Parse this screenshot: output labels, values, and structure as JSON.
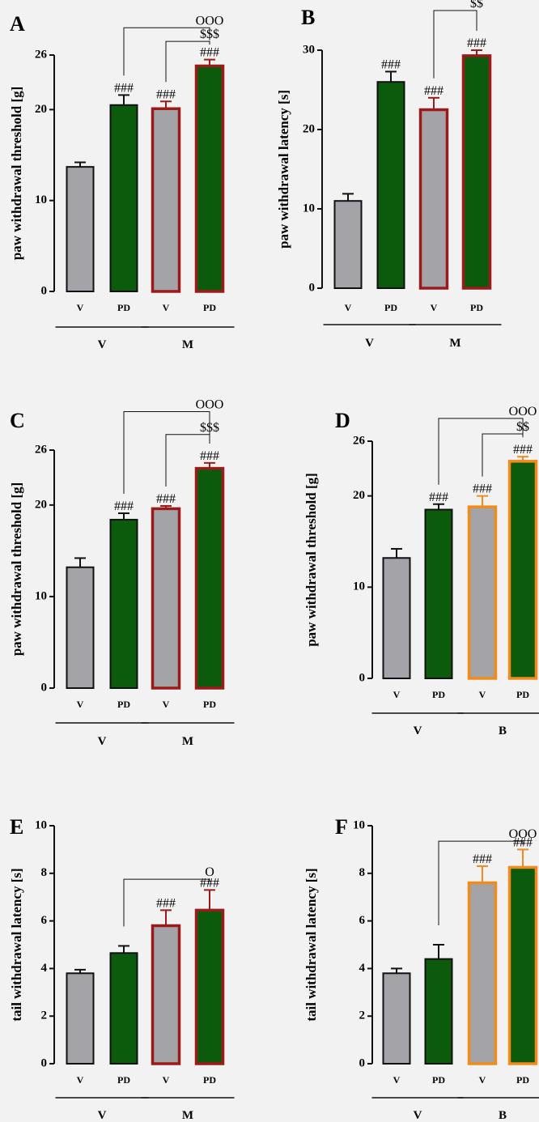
{
  "figure": {
    "background": "#f2f2f2"
  },
  "colors": {
    "gray": "#a3a3a8",
    "green": "#0c5a0c",
    "black": "#111111",
    "darkred": "#9b1a1a",
    "orange": "#f08c1e"
  },
  "chart_data": [
    {
      "type": "bar",
      "panel": "A",
      "ylabel": "paw withdrawal threshold  [g]",
      "ylim": [
        0,
        26
      ],
      "yticks": [
        0,
        10,
        20,
        26
      ],
      "categories": [
        "V",
        "PD",
        "V",
        "PD"
      ],
      "groups": [
        {
          "label": "V",
          "span": [
            0,
            1
          ]
        },
        {
          "label": "M",
          "span": [
            2,
            3
          ]
        }
      ],
      "values": [
        13.7,
        20.5,
        20.1,
        24.8
      ],
      "errors": [
        0.5,
        1.1,
        0.8,
        0.7
      ],
      "fills": [
        "gray",
        "green",
        "gray",
        "green"
      ],
      "outlines": [
        "black",
        "black",
        "darkred",
        "darkred"
      ],
      "bar_labels": [
        "",
        "###",
        "###",
        "###"
      ],
      "brackets": [
        {
          "from": 1,
          "to": 3,
          "y": 29.0,
          "label": "OOO"
        },
        {
          "from": 2,
          "to": 3,
          "y": 27.5,
          "label": "$$$"
        }
      ]
    },
    {
      "type": "bar",
      "panel": "B",
      "ylabel": "paw withdrawal latency  [s]",
      "ylim": [
        0,
        30
      ],
      "yticks": [
        0,
        10,
        20,
        30
      ],
      "categories": [
        "V",
        "PD",
        "V",
        "PD"
      ],
      "groups": [
        {
          "label": "V",
          "span": [
            0,
            1
          ]
        },
        {
          "label": "M",
          "span": [
            2,
            3
          ]
        }
      ],
      "values": [
        11.0,
        26.0,
        22.5,
        29.3
      ],
      "errors": [
        0.9,
        1.3,
        1.5,
        0.7
      ],
      "fills": [
        "gray",
        "green",
        "gray",
        "green"
      ],
      "outlines": [
        "black",
        "black",
        "darkred",
        "darkred"
      ],
      "bar_labels": [
        "",
        "###",
        "###",
        "###"
      ],
      "brackets": [
        {
          "from": 2,
          "to": 3,
          "y": 35.0,
          "label": "$$"
        }
      ]
    },
    {
      "type": "bar",
      "panel": "C",
      "ylabel": "paw withdrawal threshold  [g]",
      "ylim": [
        0,
        26
      ],
      "yticks": [
        0,
        10,
        20,
        26
      ],
      "categories": [
        "V",
        "PD",
        "V",
        "PD"
      ],
      "groups": [
        {
          "label": "V",
          "span": [
            0,
            1
          ]
        },
        {
          "label": "M",
          "span": [
            2,
            3
          ]
        }
      ],
      "values": [
        13.2,
        18.4,
        19.6,
        24.0
      ],
      "errors": [
        1.0,
        0.7,
        0.3,
        0.6
      ],
      "fills": [
        "gray",
        "green",
        "gray",
        "green"
      ],
      "outlines": [
        "black",
        "black",
        "darkred",
        "darkred"
      ],
      "bar_labels": [
        "",
        "###",
        "###",
        "###"
      ],
      "brackets": [
        {
          "from": 1,
          "to": 3,
          "y": 30.2,
          "label": "OOO"
        },
        {
          "from": 2,
          "to": 3,
          "y": 27.7,
          "label": "$$$"
        }
      ]
    },
    {
      "type": "bar",
      "panel": "D",
      "ylabel": "paw withdrawal threshold  [g]",
      "ylim": [
        0,
        26
      ],
      "yticks": [
        0,
        10,
        20,
        26
      ],
      "categories": [
        "V",
        "PD",
        "V",
        "PD"
      ],
      "groups": [
        {
          "label": "V",
          "span": [
            0,
            1
          ]
        },
        {
          "label": "B",
          "span": [
            2,
            3
          ]
        }
      ],
      "values": [
        13.2,
        18.5,
        18.8,
        23.8
      ],
      "errors": [
        1.0,
        0.6,
        1.2,
        0.5
      ],
      "fills": [
        "gray",
        "green",
        "gray",
        "green"
      ],
      "outlines": [
        "black",
        "black",
        "orange",
        "orange"
      ],
      "bar_labels": [
        "",
        "###",
        "###",
        "###"
      ],
      "brackets": [
        {
          "from": 1,
          "to": 3,
          "y": 28.5,
          "label": "OOO"
        },
        {
          "from": 2,
          "to": 3,
          "y": 26.8,
          "label": "$$"
        }
      ]
    },
    {
      "type": "bar",
      "panel": "E",
      "ylabel": "tail withdrawal latency  [s]",
      "ylim": [
        0,
        10
      ],
      "yticks": [
        0,
        2,
        4,
        6,
        8,
        10
      ],
      "categories": [
        "V",
        "PD",
        "V",
        "PD"
      ],
      "groups": [
        {
          "label": "V",
          "span": [
            0,
            1
          ]
        },
        {
          "label": "M",
          "span": [
            2,
            3
          ]
        }
      ],
      "values": [
        3.8,
        4.65,
        5.8,
        6.45
      ],
      "errors": [
        0.15,
        0.3,
        0.65,
        0.85
      ],
      "fills": [
        "gray",
        "green",
        "gray",
        "green"
      ],
      "outlines": [
        "black",
        "black",
        "darkred",
        "darkred"
      ],
      "bar_labels": [
        "",
        "",
        "###",
        "###"
      ],
      "brackets": [
        {
          "from": 1,
          "to": 3,
          "y": 7.75,
          "label": "O"
        }
      ]
    },
    {
      "type": "bar",
      "panel": "F",
      "ylabel": "tail withdrawal latency [s]",
      "ylim": [
        0,
        10
      ],
      "yticks": [
        0,
        2,
        4,
        6,
        8,
        10
      ],
      "categories": [
        "V",
        "PD",
        "V",
        "PD"
      ],
      "groups": [
        {
          "label": "V",
          "span": [
            0,
            1
          ]
        },
        {
          "label": "B",
          "span": [
            2,
            3
          ]
        }
      ],
      "values": [
        3.8,
        4.4,
        7.6,
        8.25
      ],
      "errors": [
        0.2,
        0.6,
        0.7,
        0.75
      ],
      "fills": [
        "gray",
        "green",
        "gray",
        "green"
      ],
      "outlines": [
        "black",
        "black",
        "orange",
        "orange"
      ],
      "bar_labels": [
        "",
        "",
        "###",
        "###"
      ],
      "brackets": [
        {
          "from": 1,
          "to": 3,
          "y": 9.35,
          "label": "OOO"
        }
      ]
    }
  ]
}
